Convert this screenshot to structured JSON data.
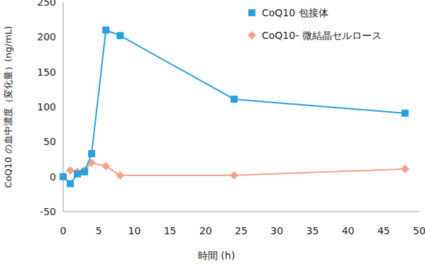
{
  "chart_data": {
    "type": "line",
    "x_label": "時間 (h)",
    "y_label": "CoQ10 の血中濃度（変化量）(ng/mL)",
    "xlim": [
      0,
      50
    ],
    "xticks": [
      0,
      5,
      10,
      15,
      20,
      25,
      30,
      35,
      40,
      45,
      50
    ],
    "ylim": [
      -50,
      250
    ],
    "yticks": [
      -50,
      0,
      50,
      100,
      150,
      200,
      250
    ],
    "grid": false,
    "legend": "top-right",
    "series": [
      {
        "name": "CoQ10 包接体",
        "color": "#2b9fdb",
        "marker": "square",
        "x": [
          0,
          1,
          2,
          3,
          4,
          6,
          8,
          24,
          48
        ],
        "values": [
          0,
          -10,
          4,
          7,
          33,
          210,
          202,
          111,
          91
        ]
      },
      {
        "name": "CoQ10- 微結晶セルロース",
        "color": "#f5a08b",
        "marker": "diamond",
        "x": [
          1,
          2,
          3,
          4,
          6,
          8,
          24,
          48
        ],
        "values": [
          9,
          7,
          9,
          20,
          15,
          2,
          2,
          11
        ]
      }
    ]
  }
}
